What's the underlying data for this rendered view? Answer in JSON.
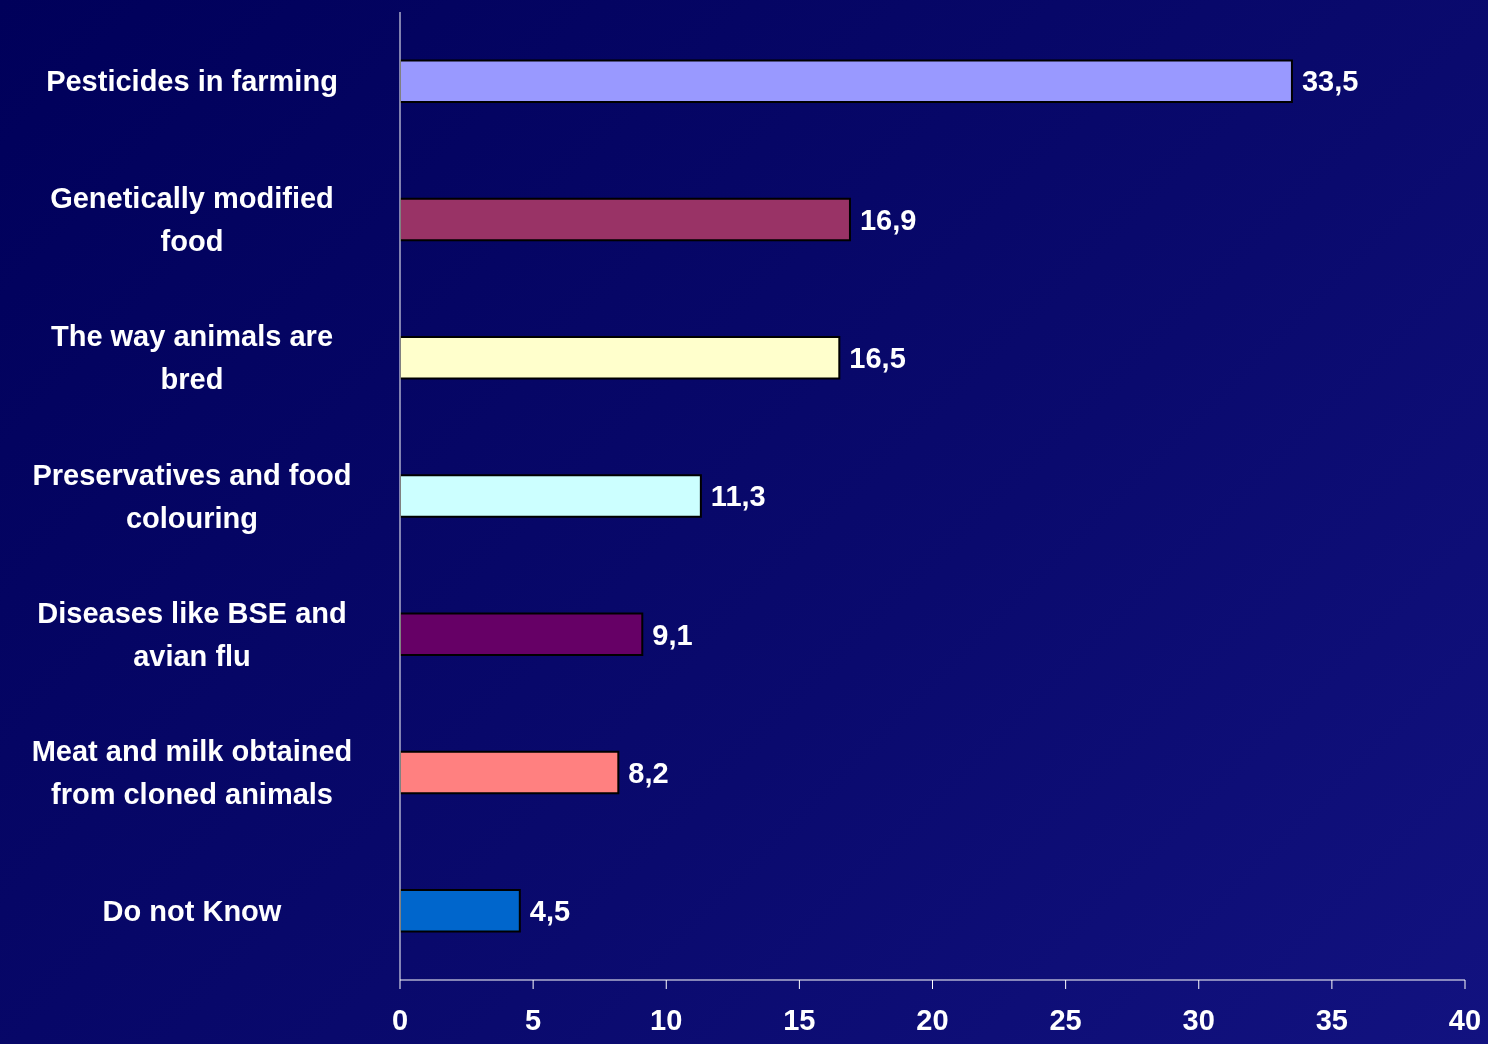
{
  "chart_data": {
    "type": "bar",
    "orientation": "horizontal",
    "categories": [
      "Pesticides in farming",
      "Genetically modified food",
      "The way animals are bred",
      "Preservatives and food colouring",
      "Diseases like BSE and avian flu",
      "Meat and milk obtained from cloned animals",
      "Do not Know"
    ],
    "values": [
      33.5,
      16.9,
      16.5,
      11.3,
      9.1,
      8.2,
      4.5
    ],
    "value_labels": [
      "33,5",
      "16,9",
      "16,5",
      "11,3",
      "9,1",
      "8,2",
      "4,5"
    ],
    "colors": [
      "#9999ff",
      "#993366",
      "#ffffcc",
      "#ccffff",
      "#660066",
      "#ff8080",
      "#0066cc"
    ],
    "xlim": [
      0,
      40
    ],
    "xticks": [
      0,
      5,
      10,
      15,
      20,
      25,
      30,
      35,
      40
    ],
    "grid": false,
    "legend": false
  }
}
